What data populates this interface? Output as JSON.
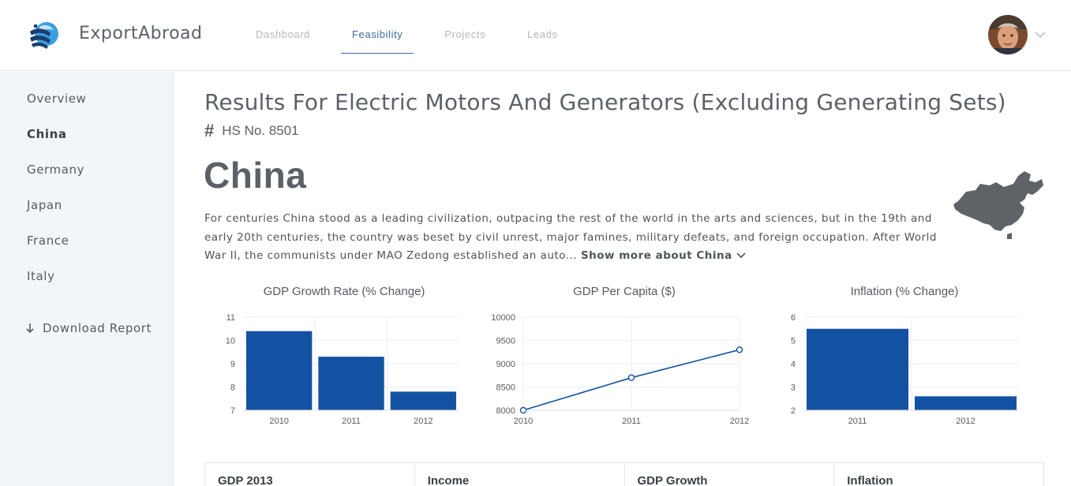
{
  "app": {
    "brand": "ExportAbroad"
  },
  "nav": [
    {
      "label": "Dashboard",
      "active": false
    },
    {
      "label": "Feasibility",
      "active": true
    },
    {
      "label": "Projects",
      "active": false
    },
    {
      "label": "Leads",
      "active": false
    }
  ],
  "sidebar": {
    "items": [
      {
        "label": "Overview",
        "active": false
      },
      {
        "label": "China",
        "active": true
      },
      {
        "label": "Germany",
        "active": false
      },
      {
        "label": "Japan",
        "active": false
      },
      {
        "label": "France",
        "active": false
      },
      {
        "label": "Italy",
        "active": false
      }
    ],
    "download_label": "Download Report"
  },
  "main": {
    "title": "Results For Electric Motors And Generators (Excluding Generating Sets)",
    "hs_label": "HS No. 8501",
    "country": "China",
    "description": "For centuries China stood as a leading civilization, outpacing the rest of the world in the arts and sciences, but in the 19th and early 20th centuries, the country was beset by civil unrest, major famines, military defeats, and foreign occupation. After World War II, the communists under MAO Zedong established an auto...",
    "show_more": "Show more about China"
  },
  "stats": {
    "headers": [
      "GDP 2013",
      "Income",
      "GDP Growth",
      "Inflation"
    ]
  },
  "colors": {
    "bar": "#1352a2",
    "accent": "#3e6b9c",
    "text": "#555b61"
  },
  "chart_data": [
    {
      "type": "bar",
      "title": "GDP Growth Rate (% Change)",
      "categories": [
        "2010",
        "2011",
        "2012"
      ],
      "values": [
        10.4,
        9.3,
        7.8
      ],
      "ylim": [
        7,
        11
      ],
      "yticks": [
        7,
        8,
        9,
        10,
        11
      ],
      "grid": true
    },
    {
      "type": "line",
      "title": "GDP Per Capita ($)",
      "x": [
        "2010",
        "2011",
        "2012"
      ],
      "values": [
        8000,
        8700,
        9300
      ],
      "ylim": [
        8000,
        10000
      ],
      "yticks": [
        8000,
        8500,
        9000,
        9500,
        10000
      ],
      "grid": true
    },
    {
      "type": "bar",
      "title": "Inflation (% Change)",
      "categories": [
        "2011",
        "2012"
      ],
      "values": [
        5.5,
        2.6
      ],
      "ylim": [
        2,
        6
      ],
      "yticks": [
        2,
        3,
        4,
        5,
        6
      ],
      "grid": true
    }
  ]
}
